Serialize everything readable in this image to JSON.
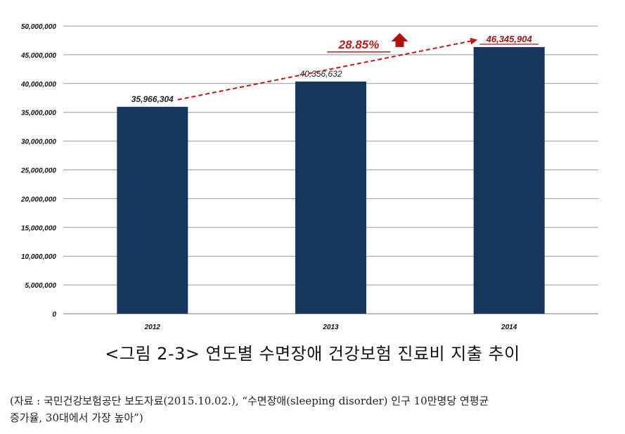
{
  "chart_data": {
    "type": "bar",
    "categories": [
      "2012",
      "2013",
      "2014"
    ],
    "values": [
      35966304,
      40356632,
      46345904
    ],
    "value_labels": [
      "35,966,304",
      "40,356,632",
      "46,345,904"
    ],
    "y_ticks": [
      "0",
      "5,000,000",
      "10,000,000",
      "15,000,000",
      "20,000,000",
      "25,000,000",
      "30,000,000",
      "35,000,000",
      "40,000,000",
      "45,000,000",
      "50,000,000"
    ],
    "ylim": [
      0,
      50000000
    ],
    "y_step": 5000000,
    "grid": true,
    "bar_color": "#16365c",
    "trend_color": "#c01818",
    "growth_label": "28.85%",
    "title": "",
    "xlabel": "",
    "ylabel": ""
  },
  "caption": "<그림 2-3> 연도별 수면장애 건강보험 진료비 지출 추이",
  "source_line1": "(자료 : 국민건강보험공단 보도자료(2015.10.02.), “수면장애(sleeping disorder) 인구 10만명당 연평균",
  "source_line2": "증가율, 30대에서 가장 높아”)"
}
